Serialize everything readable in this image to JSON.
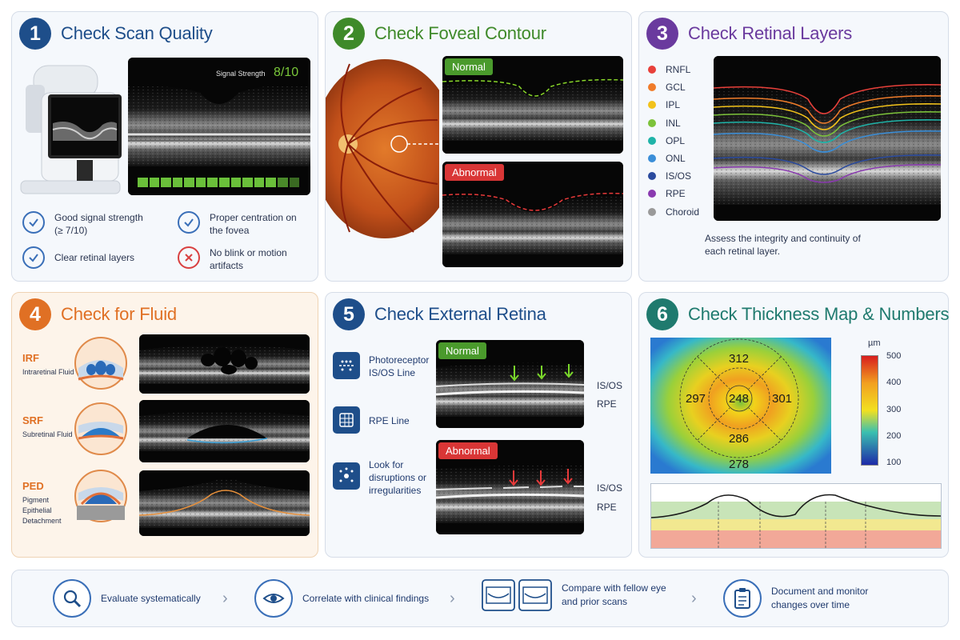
{
  "colors": {
    "blue": "#1e4e8a",
    "green": "#3f8a2a",
    "purple": "#6a3a9e",
    "orange": "#e07024",
    "teal": "#1f7a6e",
    "red": "#d93636"
  },
  "panel1": {
    "number": "1",
    "title": "Check Scan Quality",
    "signal_label": "Signal Strength",
    "signal_value": "8/10",
    "checks": [
      {
        "text": "Good signal strength (≥ 7/10)",
        "icon": "check-icon"
      },
      {
        "text": "Proper centration on the fovea",
        "icon": "check-icon"
      },
      {
        "text": "Clear retinal layers",
        "icon": "check-icon"
      },
      {
        "text": "No blink or motion artifacts",
        "icon": "x-icon"
      }
    ]
  },
  "panel2": {
    "number": "2",
    "title": "Check Foveal Contour",
    "normal": "Normal",
    "abnormal": "Abnormal"
  },
  "panel3": {
    "number": "3",
    "title": "Check Retinal Layers",
    "layers": [
      {
        "name": "RNFL",
        "color": "#e8403a"
      },
      {
        "name": "GCL",
        "color": "#f07c2a"
      },
      {
        "name": "IPL",
        "color": "#f2c21a"
      },
      {
        "name": "INL",
        "color": "#7cc23a"
      },
      {
        "name": "OPL",
        "color": "#1fb3a8"
      },
      {
        "name": "ONL",
        "color": "#3a8ed8"
      },
      {
        "name": "IS/OS",
        "color": "#2a4a9e"
      },
      {
        "name": "RPE",
        "color": "#8a3ab0"
      },
      {
        "name": "Choroid",
        "color": "#9a9a9a"
      }
    ],
    "caption": "Assess the integrity and continuity of each retinal layer."
  },
  "panel4": {
    "number": "4",
    "title": "Check for Fluid",
    "items": [
      {
        "abbr": "IRF",
        "full": "Intraretinal Fluid"
      },
      {
        "abbr": "SRF",
        "full": "Subretinal Fluid"
      },
      {
        "abbr": "PED",
        "full": "Pigment Epithelial Detachment"
      }
    ]
  },
  "panel5": {
    "number": "5",
    "title": "Check External Retina",
    "items": [
      {
        "text": "Photoreceptor IS/OS Line",
        "icon": "photoreceptor-icon"
      },
      {
        "text": "RPE Line",
        "icon": "rpe-grid-icon"
      },
      {
        "text": "Look for disruptions or irregularities",
        "icon": "disruption-icon"
      }
    ],
    "normal": "Normal",
    "abnormal": "Abnormal",
    "isos": "IS/OS",
    "rpe": "RPE"
  },
  "panel6": {
    "number": "6",
    "title": "Check Thickness Map & Numbers",
    "center": "248",
    "superior": "312",
    "inferior": "286",
    "temporal": "297",
    "nasal": "301",
    "outer_inferior": "278",
    "scale_unit": "µm",
    "scale_ticks": [
      "500",
      "400",
      "300",
      "200",
      "100"
    ]
  },
  "bottom": {
    "steps": [
      {
        "text": "Evaluate systematically",
        "icon": "magnifier-icon"
      },
      {
        "text": "Correlate with clinical findings",
        "icon": "eye-icon"
      },
      {
        "text": "Compare with fellow eye and prior scans",
        "icon": "compare-scans-icon"
      },
      {
        "text": "Document and monitor changes over time",
        "icon": "clipboard-icon"
      }
    ]
  }
}
